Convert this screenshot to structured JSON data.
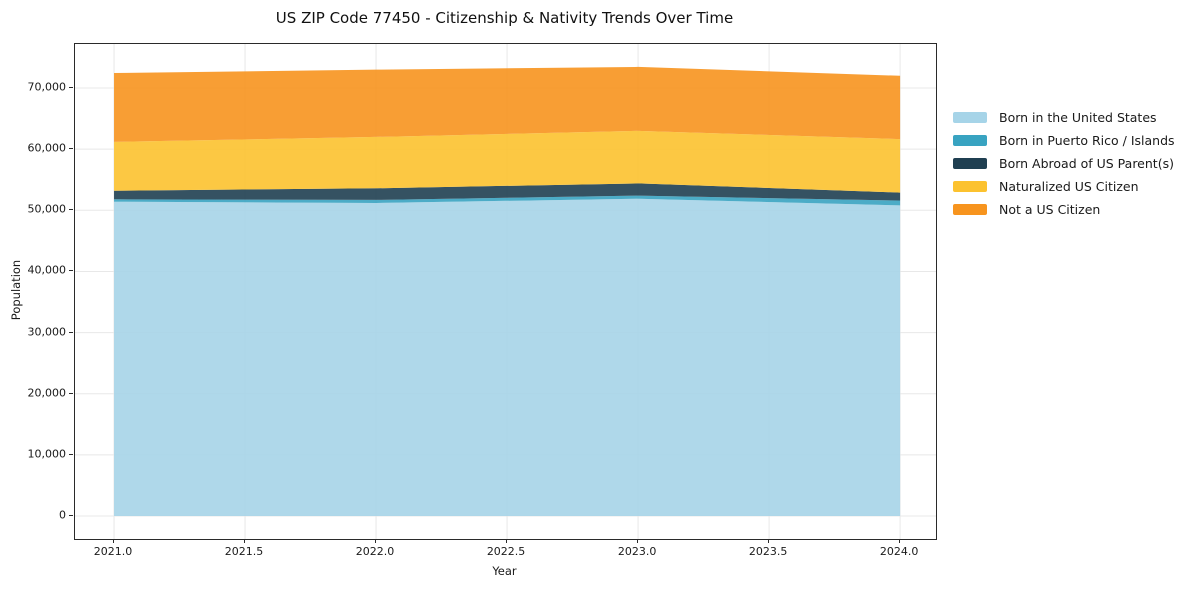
{
  "chart_data": {
    "type": "area",
    "stacked": true,
    "title": "US ZIP Code 77450 - Citizenship & Nativity Trends Over Time",
    "xlabel": "Year",
    "ylabel": "Population",
    "x": [
      2021,
      2022,
      2023,
      2024
    ],
    "series": [
      {
        "name": "Born in the United States",
        "color": "#a6d4e8",
        "values": [
          51400,
          51200,
          51900,
          50800
        ]
      },
      {
        "name": "Born in Puerto Rico / Islands",
        "color": "#38a3c1",
        "values": [
          400,
          500,
          500,
          800
        ]
      },
      {
        "name": "Born Abroad of US Parent(s)",
        "color": "#1f3f51",
        "values": [
          1400,
          1900,
          2000,
          1300
        ]
      },
      {
        "name": "Naturalized US Citizen",
        "color": "#fcc22f",
        "values": [
          8000,
          8400,
          8600,
          8750
        ]
      },
      {
        "name": "Not a US Citizen",
        "color": "#f7941e",
        "values": [
          11250,
          11000,
          10450,
          10350
        ]
      }
    ],
    "xticks": {
      "values": [
        2021.0,
        2021.5,
        2022.0,
        2022.5,
        2023.0,
        2023.5,
        2024.0
      ],
      "labels": [
        "2021.0",
        "2021.5",
        "2022.0",
        "2022.5",
        "2023.0",
        "2023.5",
        "2024.0"
      ]
    },
    "yticks": {
      "values": [
        0,
        10000,
        20000,
        30000,
        40000,
        50000,
        60000,
        70000
      ],
      "labels": [
        "0",
        "10,000",
        "20,000",
        "30,000",
        "40,000",
        "50,000",
        "60,000",
        "70,000"
      ]
    },
    "xlim": [
      2020.851,
      2024.137
    ],
    "ylim": [
      -3760,
      77200
    ],
    "grid": true,
    "grid_color": "#e8e8e8",
    "legend_position": "right-outside"
  }
}
